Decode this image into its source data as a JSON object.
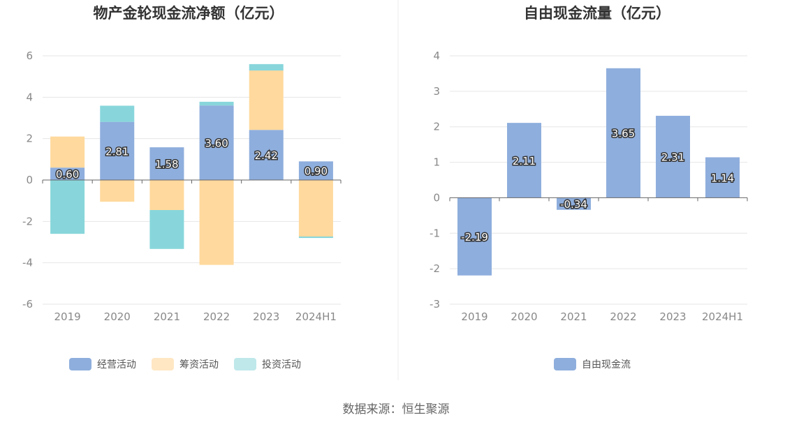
{
  "source_text": "数据来源：恒生聚源",
  "chart_data": [
    {
      "type": "bar",
      "stacked": true,
      "title": "物产金轮现金流净额（亿元）",
      "categories": [
        "2019",
        "2020",
        "2021",
        "2022",
        "2023",
        "2024H1"
      ],
      "ylim": [
        -6,
        6
      ],
      "yticks": [
        6,
        4,
        2,
        0,
        -2,
        -4,
        -6
      ],
      "legend_position": "bottom",
      "series": [
        {
          "name": "经营活动",
          "color": "#8eaedd",
          "values": [
            0.6,
            2.81,
            1.58,
            3.6,
            2.42,
            0.9
          ],
          "labels": [
            "0.60",
            "2.81",
            "1.58",
            "3.60",
            "2.42",
            "0.90"
          ]
        },
        {
          "name": "筹资活动",
          "color": "#ffd99d",
          "values": [
            1.5,
            -1.05,
            -1.45,
            -4.1,
            2.87,
            -2.73
          ]
        },
        {
          "name": "投资活动",
          "color": "#88d6db",
          "values": [
            -2.6,
            0.78,
            -1.88,
            0.18,
            0.31,
            -0.07
          ]
        }
      ]
    },
    {
      "type": "bar",
      "title": "自由现金流量（亿元）",
      "categories": [
        "2019",
        "2020",
        "2021",
        "2022",
        "2023",
        "2024H1"
      ],
      "ylim": [
        -3,
        4
      ],
      "yticks": [
        4,
        3,
        2,
        1,
        0,
        -1,
        -2,
        -3
      ],
      "legend_position": "bottom",
      "series": [
        {
          "name": "自由现金流",
          "color": "#8eaedd",
          "values": [
            -2.19,
            2.11,
            -0.34,
            3.65,
            2.31,
            1.14
          ],
          "labels": [
            "-2.19",
            "2.11",
            "-0.34",
            "3.65",
            "2.31",
            "1.14"
          ]
        }
      ]
    }
  ]
}
